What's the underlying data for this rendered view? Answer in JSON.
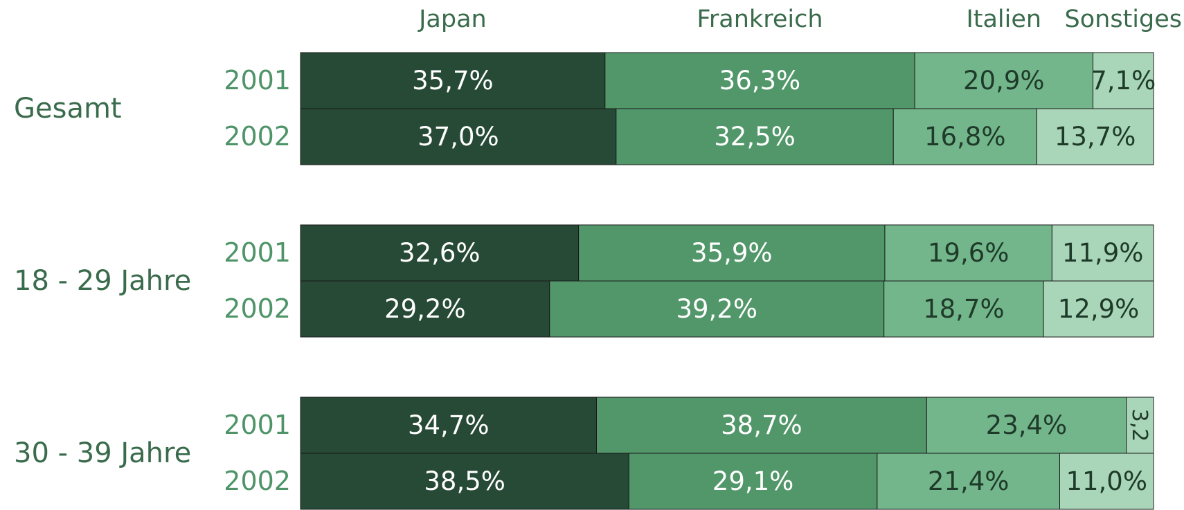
{
  "chart_data": {
    "type": "stacked-bar-horizontal",
    "groups": [
      "Gesamt",
      "18 - 29 Jahre",
      "30 - 39 Jahre"
    ],
    "categories": [
      "2001",
      "2002",
      "2001",
      "2002",
      "2001",
      "2002"
    ],
    "xlim": [
      0,
      100
    ],
    "series": [
      {
        "name": "Japan",
        "color": "#264a35",
        "text_color": "#ffffff",
        "values": [
          35.7,
          37.0,
          32.6,
          29.2,
          34.7,
          38.5
        ],
        "value_labels": [
          "35,7%",
          "37,0%",
          "32,6%",
          "29,2%",
          "34,7%",
          "38,5%"
        ]
      },
      {
        "name": "Frankreich",
        "color": "#52976a",
        "text_color": "#ffffff",
        "values": [
          36.3,
          32.5,
          35.9,
          39.2,
          38.7,
          29.1
        ],
        "value_labels": [
          "36,3%",
          "32,5%",
          "35,9%",
          "39,2%",
          "38,7%",
          "29,1%"
        ]
      },
      {
        "name": "Italien",
        "color": "#74b68b",
        "text_color": "#1e3a29",
        "values": [
          20.9,
          16.8,
          19.6,
          18.7,
          23.4,
          21.4
        ],
        "value_labels": [
          "20,9%",
          "16,8%",
          "19,6%",
          "18,7%",
          "23,4%",
          "21,4%"
        ]
      },
      {
        "name": "Sonstiges",
        "color": "#a9d5b8",
        "text_color": "#1e3a29",
        "values": [
          7.1,
          13.7,
          11.9,
          12.9,
          3.2,
          11.0
        ],
        "value_labels": [
          "7,1%",
          "13,7%",
          "11,9%",
          "12,9%",
          "3,2",
          "11,0%"
        ]
      }
    ]
  }
}
